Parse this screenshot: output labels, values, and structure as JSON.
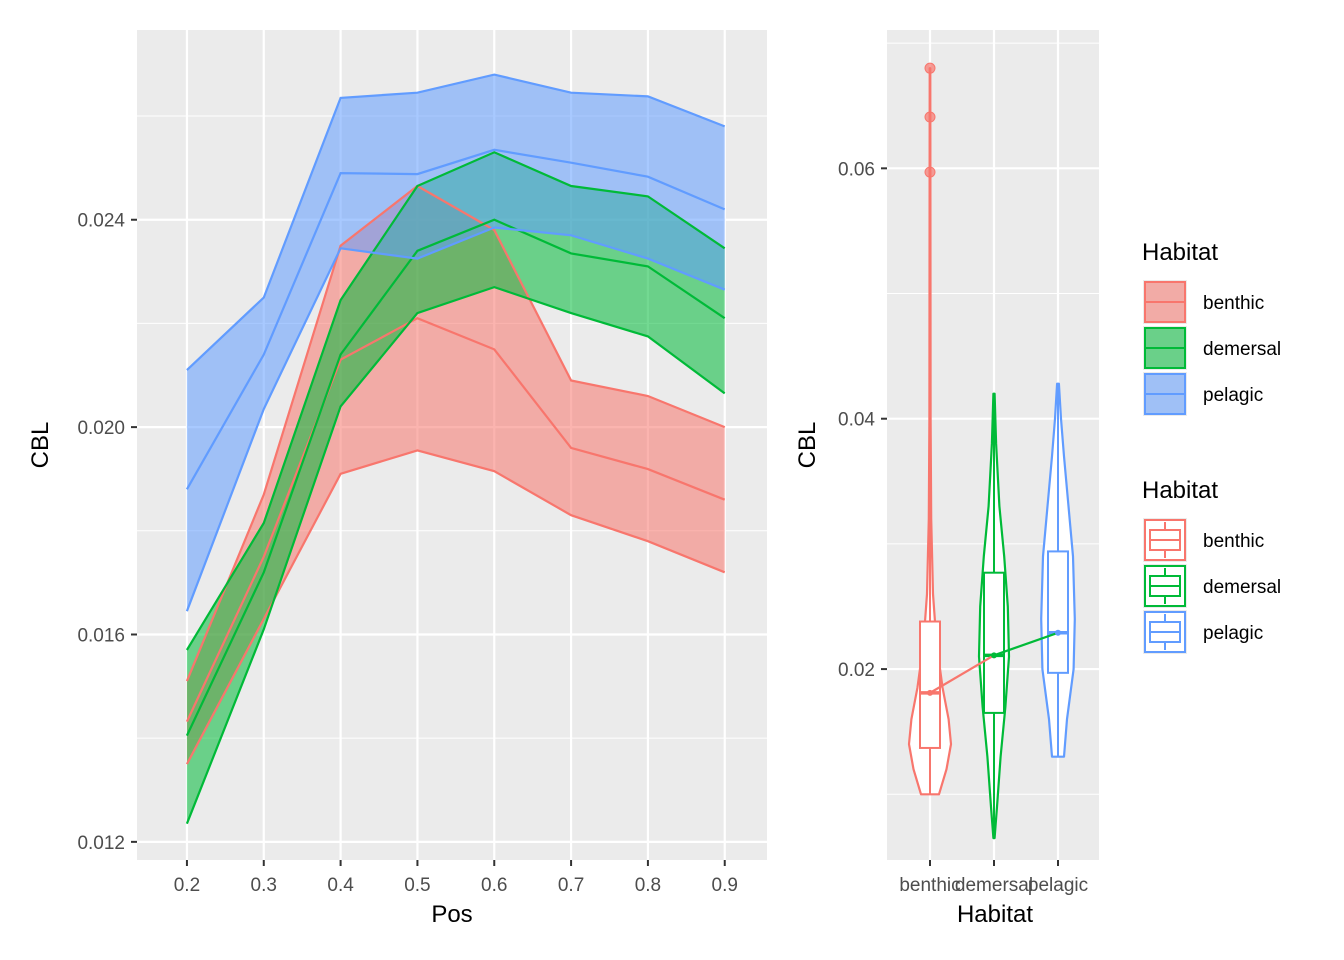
{
  "chart_data": [
    {
      "type": "area",
      "subtype": "ribbon",
      "xlabel": "Pos",
      "ylabel": "CBL",
      "x": [
        0.2,
        0.3,
        0.4,
        0.5,
        0.6,
        0.7,
        0.8,
        0.9
      ],
      "xlim": [
        0.135,
        0.955
      ],
      "ylim": [
        0.01165,
        0.02766
      ],
      "x_ticks": [
        "0.2",
        "0.3",
        "0.4",
        "0.5",
        "0.6",
        "0.7",
        "0.8",
        "0.9"
      ],
      "y_ticks": [
        0.012,
        0.016,
        0.02,
        0.024
      ],
      "y_tick_labels": [
        "0.012",
        "0.016",
        "0.020",
        "0.024"
      ],
      "grid": true,
      "series": [
        {
          "name": "benthic",
          "color": "#F8766D",
          "mean": [
            0.01432,
            0.0175,
            0.0213,
            0.0221,
            0.0215,
            0.0196,
            0.01919,
            0.0186
          ],
          "lower": [
            0.0135,
            0.0163,
            0.0191,
            0.01955,
            0.01915,
            0.0183,
            0.0178,
            0.0172
          ],
          "upper": [
            0.0151,
            0.0187,
            0.0235,
            0.02465,
            0.0238,
            0.0209,
            0.0206,
            0.02
          ]
        },
        {
          "name": "demersal",
          "color": "#00BA38",
          "mean": [
            0.01405,
            0.0172,
            0.0214,
            0.0234,
            0.024,
            0.02335,
            0.0231,
            0.0221
          ],
          "lower": [
            0.01235,
            0.0161,
            0.0204,
            0.0222,
            0.0227,
            0.0222,
            0.02175,
            0.02065
          ],
          "upper": [
            0.0157,
            0.01815,
            0.02245,
            0.02465,
            0.0253,
            0.02465,
            0.02445,
            0.02345
          ]
        },
        {
          "name": "pelagic",
          "color": "#619CFF",
          "mean": [
            0.0188,
            0.0214,
            0.0249,
            0.02488,
            0.02535,
            0.0251,
            0.02483,
            0.0242
          ],
          "lower": [
            0.01645,
            0.02035,
            0.02345,
            0.02325,
            0.02385,
            0.0237,
            0.02325,
            0.02265
          ],
          "upper": [
            0.0211,
            0.0225,
            0.02635,
            0.02645,
            0.0268,
            0.02645,
            0.02638,
            0.0258
          ]
        }
      ]
    },
    {
      "type": "violin",
      "subtype": "violin+boxplot+median-line",
      "xlabel": "Habitat",
      "ylabel": "CBL",
      "categories": [
        "benthic",
        "demersal",
        "pelagic"
      ],
      "ylim": [
        0.00475,
        0.07105
      ],
      "y_ticks": [
        0.02,
        0.04,
        0.06
      ],
      "y_tick_labels": [
        "0.02",
        "0.04",
        "0.06"
      ],
      "grid": true,
      "groups": [
        {
          "name": "benthic",
          "color": "#F8766D",
          "min": 0.01,
          "q1": 0.0137,
          "median": 0.0181,
          "q3": 0.0238,
          "max": 0.068,
          "whisker_low": 0.01,
          "whisker_high": 0.039,
          "outliers": [
            0.0597,
            0.0641,
            0.068
          ],
          "density": [
            [
              0.01,
              0.3
            ],
            [
              0.012,
              0.55
            ],
            [
              0.014,
              0.7
            ],
            [
              0.016,
              0.62
            ],
            [
              0.0185,
              0.42
            ],
            [
              0.022,
              0.22
            ],
            [
              0.026,
              0.1
            ],
            [
              0.032,
              0.04
            ],
            [
              0.04,
              0.02
            ],
            [
              0.068,
              0.01
            ]
          ]
        },
        {
          "name": "demersal",
          "color": "#00BA38",
          "min": 0.0065,
          "q1": 0.0165,
          "median": 0.0211,
          "q3": 0.0277,
          "max": 0.042,
          "whisker_low": 0.0065,
          "whisker_high": 0.042,
          "outliers": [],
          "density": [
            [
              0.0065,
              0.02
            ],
            [
              0.009,
              0.1
            ],
            [
              0.013,
              0.22
            ],
            [
              0.017,
              0.38
            ],
            [
              0.021,
              0.5
            ],
            [
              0.025,
              0.46
            ],
            [
              0.029,
              0.34
            ],
            [
              0.033,
              0.18
            ],
            [
              0.038,
              0.07
            ],
            [
              0.042,
              0.02
            ]
          ]
        },
        {
          "name": "pelagic",
          "color": "#619CFF",
          "min": 0.013,
          "q1": 0.0197,
          "median": 0.0229,
          "q3": 0.0294,
          "max": 0.0428,
          "whisker_low": 0.013,
          "whisker_high": 0.0428,
          "outliers": [],
          "density": [
            [
              0.013,
              0.2
            ],
            [
              0.016,
              0.3
            ],
            [
              0.02,
              0.52
            ],
            [
              0.024,
              0.56
            ],
            [
              0.029,
              0.5
            ],
            [
              0.033,
              0.35
            ],
            [
              0.037,
              0.2
            ],
            [
              0.04,
              0.1
            ],
            [
              0.0428,
              0.03
            ]
          ]
        }
      ]
    }
  ],
  "legend": {
    "ribbon_title": "Habitat",
    "box_title": "Habitat",
    "items": [
      "benthic",
      "demersal",
      "pelagic"
    ],
    "colors": [
      "#F8766D",
      "#00BA38",
      "#619CFF"
    ],
    "position": "right"
  }
}
